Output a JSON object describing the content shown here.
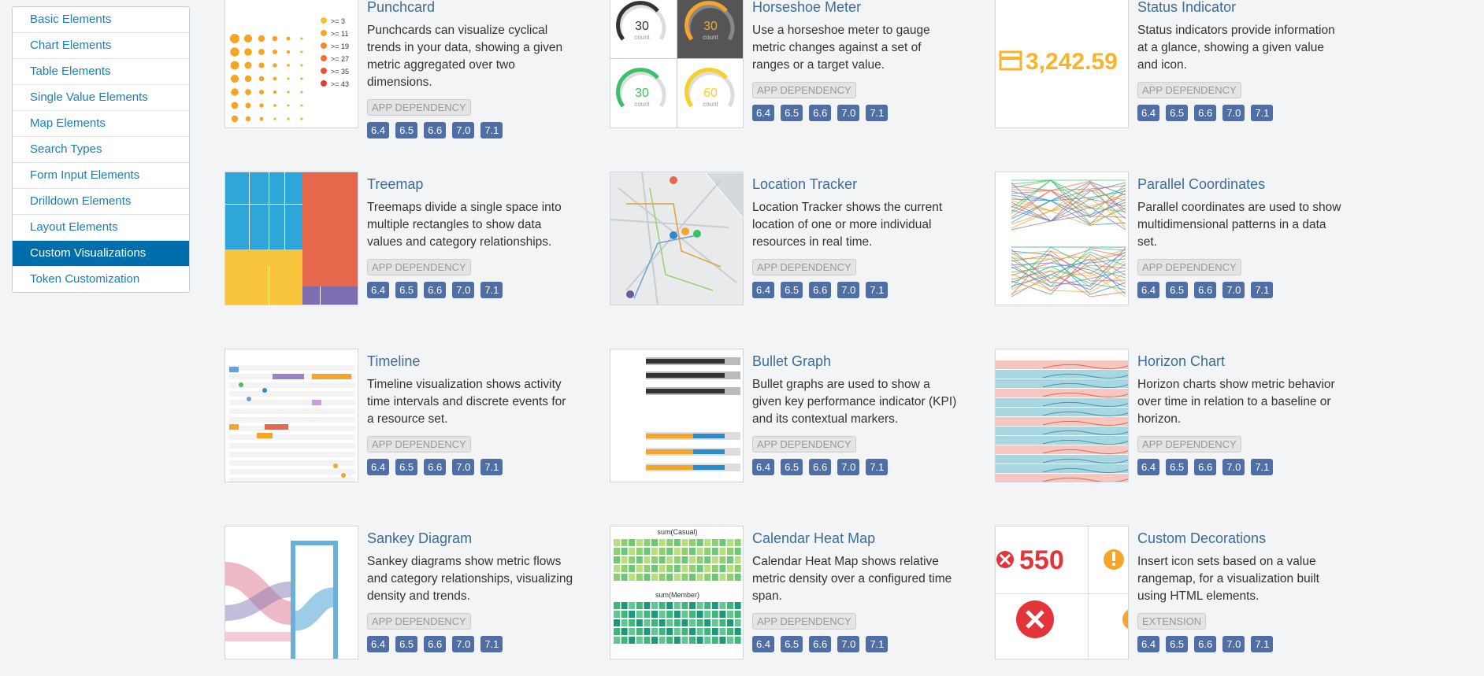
{
  "nav": {
    "items": [
      "Basic Elements",
      "Chart Elements",
      "Table Elements",
      "Single Value Elements",
      "Map Elements",
      "Search Types",
      "Form Input Elements",
      "Drilldown Elements",
      "Layout Elements",
      "Custom Visualizations",
      "Token Customization"
    ],
    "active": "Custom Visualizations"
  },
  "cards": [
    {
      "title": "Punchcard",
      "description": "Punchcards can visualize cyclical trends in your data, showing a given metric aggregated over two dimensions.",
      "tag": "APP DEPENDENCY",
      "versions": [
        "6.4",
        "6.5",
        "6.6",
        "7.0",
        "7.1"
      ],
      "thumb_labels": [
        ">= 3",
        ">= 11",
        ">= 19",
        ">= 27",
        ">= 35",
        ">= 43"
      ]
    },
    {
      "title": "Horseshoe Meter",
      "description": "Use a horseshoe meter to gauge metric changes against a set of ranges or a target value.",
      "tag": "APP DEPENDENCY",
      "versions": [
        "6.4",
        "6.5",
        "6.6",
        "7.0",
        "7.1"
      ],
      "thumb_labels": [
        "30",
        "30",
        "30",
        "60",
        "count"
      ]
    },
    {
      "title": "Status Indicator",
      "description": "Status indicators provide information at a glance, showing a given value and icon.",
      "tag": "APP DEPENDENCY",
      "versions": [
        "6.4",
        "6.5",
        "6.6",
        "7.0",
        "7.1"
      ],
      "thumb_labels": [
        "3,242.59"
      ]
    },
    {
      "title": "Treemap",
      "description": "Treemaps divide a single space into multiple rectangles to show data values and category relationships.",
      "tag": "APP DEPENDENCY",
      "versions": [
        "6.4",
        "6.5",
        "6.6",
        "7.0",
        "7.1"
      ]
    },
    {
      "title": "Location Tracker",
      "description": "Location Tracker shows the current location of one or more individual resources in real time.",
      "tag": "APP DEPENDENCY",
      "versions": [
        "6.4",
        "6.5",
        "6.6",
        "7.0",
        "7.1"
      ]
    },
    {
      "title": "Parallel Coordinates",
      "description": "Parallel coordinates are used to show multidimensional patterns in a data set.",
      "tag": "APP DEPENDENCY",
      "versions": [
        "6.4",
        "6.5",
        "6.6",
        "7.0",
        "7.1"
      ]
    },
    {
      "title": "Timeline",
      "description": "Timeline visualization shows activity time intervals and discrete events for a resource set.",
      "tag": "APP DEPENDENCY",
      "versions": [
        "6.4",
        "6.5",
        "6.6",
        "7.0",
        "7.1"
      ]
    },
    {
      "title": "Bullet Graph",
      "description": "Bullet graphs are used to show a given key performance indicator (KPI) and its contextual markers.",
      "tag": "APP DEPENDENCY",
      "versions": [
        "6.4",
        "6.5",
        "6.6",
        "7.0",
        "7.1"
      ]
    },
    {
      "title": "Horizon Chart",
      "description": "Horizon charts show metric behavior over time in relation to a baseline or horizon.",
      "tag": "APP DEPENDENCY",
      "versions": [
        "6.4",
        "6.5",
        "6.6",
        "7.0",
        "7.1"
      ]
    },
    {
      "title": "Sankey Diagram",
      "description": "Sankey diagrams show metric flows and category relationships, visualizing density and trends.",
      "tag": "APP DEPENDENCY",
      "versions": [
        "6.4",
        "6.5",
        "6.6",
        "7.0",
        "7.1"
      ]
    },
    {
      "title": "Calendar Heat Map",
      "description": "Calendar Heat Map shows relative metric density over a configured time span.",
      "tag": "APP DEPENDENCY",
      "versions": [
        "6.4",
        "6.5",
        "6.6",
        "7.0",
        "7.1"
      ],
      "thumb_labels": [
        "sum(Casual)",
        "sum(Member)"
      ]
    },
    {
      "title": "Custom Decorations",
      "description": "Insert icon sets based on a value rangemap, for a visualization built using HTML elements.",
      "tag": "EXTENSION",
      "versions": [
        "6.4",
        "6.5",
        "6.6",
        "7.0",
        "7.1"
      ],
      "thumb_labels": [
        "550"
      ]
    }
  ]
}
